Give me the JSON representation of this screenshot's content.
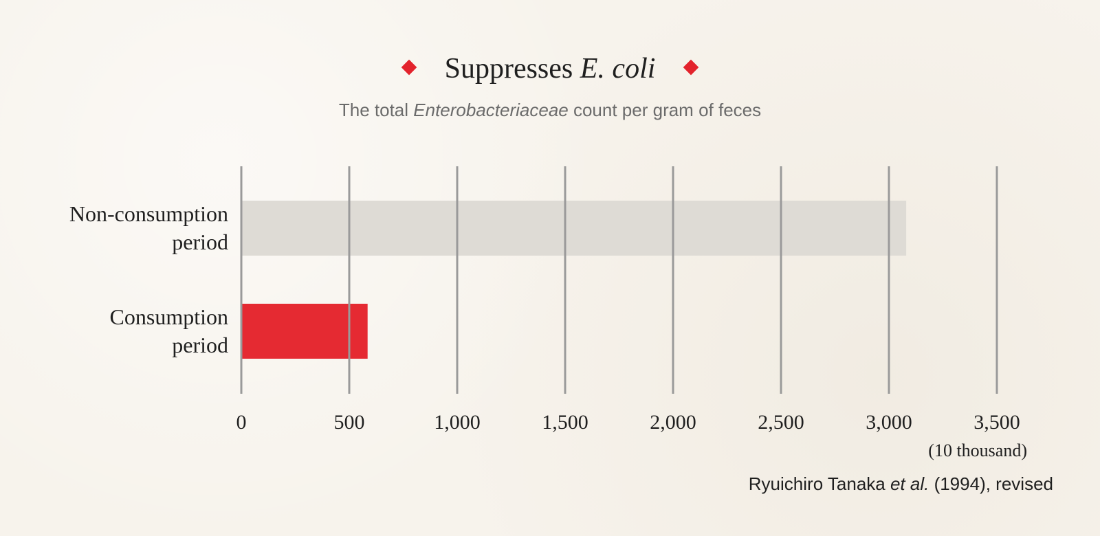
{
  "title": {
    "main": "Suppresses ",
    "italic": "E. coli"
  },
  "subtitle": {
    "before": "The total ",
    "italic": "Enterobacteriaceae",
    "after": " count per gram of feces"
  },
  "source": {
    "before": "Ryuichiro Tanaka ",
    "italic": "et al.",
    "after": " (1994), revised"
  },
  "colors": {
    "accent": "#e3232c",
    "bar_non": "#dedbd5",
    "bar_consumption": "#e52a32",
    "grid": "#9a9a9a"
  },
  "chart_data": {
    "type": "bar",
    "orientation": "horizontal",
    "categories": [
      [
        "Non-consumption",
        "period"
      ],
      [
        "Consumption",
        "period"
      ]
    ],
    "values": [
      3080,
      585
    ],
    "xlim": [
      0,
      3500
    ],
    "x_ticks": [
      0,
      500,
      1000,
      1500,
      2000,
      2500,
      3000,
      3500
    ],
    "x_tick_labels": [
      "0",
      "500",
      "1,000",
      "1,500",
      "2,000",
      "2,500",
      "3,000",
      "3,500"
    ],
    "x_unit": "(10 thousand)",
    "grid": true
  }
}
